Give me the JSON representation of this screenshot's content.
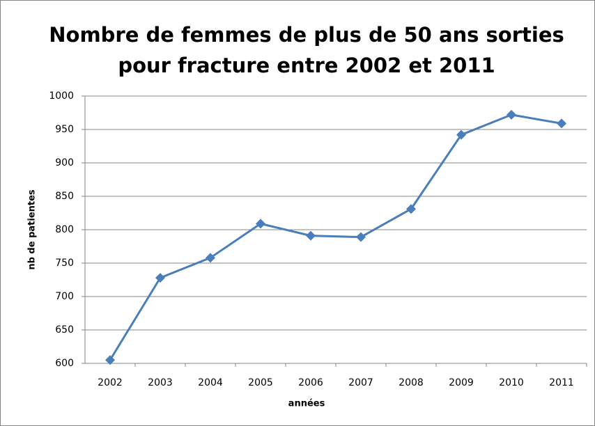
{
  "chart_data": {
    "type": "line",
    "title": [
      "Nombre de femmes de plus de 50 ans sorties",
      "pour fracture entre 2002 et 2011"
    ],
    "xlabel": "années",
    "ylabel": "nb de patientes",
    "categories": [
      "2002",
      "2003",
      "2004",
      "2005",
      "2006",
      "2007",
      "2008",
      "2009",
      "2010",
      "2011"
    ],
    "values": [
      605,
      728,
      758,
      809,
      791,
      789,
      831,
      942,
      972,
      959
    ],
    "color": "#4a7ebb",
    "ylim": [
      600,
      1000
    ],
    "yticks": [
      600,
      650,
      700,
      750,
      800,
      850,
      900,
      950,
      1000
    ],
    "grid": true
  }
}
